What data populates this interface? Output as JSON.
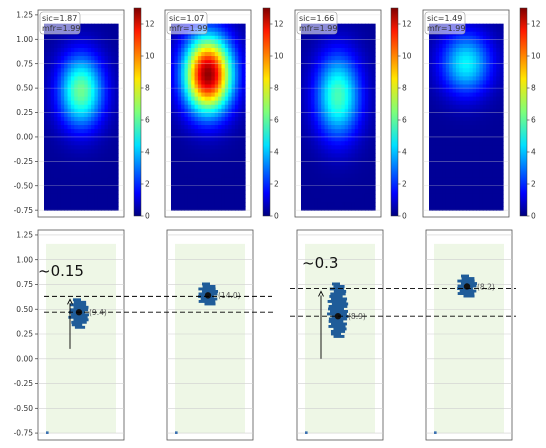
{
  "chart_data": {
    "type": "heatmap",
    "y_ticks": [
      1.25,
      1.0,
      0.75,
      0.5,
      0.25,
      0.0,
      -0.25,
      -0.5,
      -0.75
    ],
    "ylim": [
      -0.82,
      1.3
    ],
    "colorbar": {
      "ticks": [
        0,
        2,
        4,
        6,
        8,
        10,
        12
      ],
      "range": [
        0,
        13
      ],
      "colormap": "jet"
    },
    "colors": {
      "grid": "#cfcfcf",
      "cluster": "#1f5c99",
      "region": "#eef7e6",
      "arrow": "#000000",
      "dash": "#000000"
    },
    "heatmaps": [
      {
        "id": 1,
        "sic": "sic=1.87",
        "mfr": "mfr=1.99",
        "peak": 6.0,
        "center": [
          0.0,
          0.47
        ],
        "spread": [
          0.17,
          0.26
        ]
      },
      {
        "id": 2,
        "sic": "sic=1.07",
        "mfr": "mfr=1.99",
        "peak": 12.5,
        "center": [
          0.0,
          0.64
        ],
        "spread": [
          0.18,
          0.27
        ]
      },
      {
        "id": 3,
        "sic": "sic=1.66",
        "mfr": "mfr=1.99",
        "peak": 5.5,
        "center": [
          0.0,
          0.42
        ],
        "spread": [
          0.17,
          0.3
        ]
      },
      {
        "id": 4,
        "sic": "sic=1.49",
        "mfr": "mfr=1.99",
        "peak": 4.5,
        "center": [
          0.0,
          0.75
        ],
        "spread": [
          0.19,
          0.22
        ]
      }
    ],
    "clusters": [
      {
        "id": 1,
        "label": "(9.4)",
        "center_y": 0.47,
        "extent": [
          0.33,
          0.61
        ]
      },
      {
        "id": 2,
        "label": "(14.0)",
        "center_y": 0.64,
        "extent": [
          0.55,
          0.77
        ]
      },
      {
        "id": 3,
        "label": "(8.9)",
        "center_y": 0.43,
        "extent": [
          0.22,
          0.77
        ]
      },
      {
        "id": 4,
        "label": "(8.2)",
        "center_y": 0.73,
        "extent": [
          0.63,
          0.85
        ]
      }
    ],
    "annotations": [
      {
        "text": "~0.15",
        "arrow_from": 0.1,
        "arrow_to": 0.63,
        "lines": [
          0.63,
          0.47
        ]
      },
      {
        "text": "~0.3",
        "arrow_from": 0.0,
        "arrow_to": 0.71,
        "lines": [
          0.71,
          0.43
        ]
      }
    ]
  }
}
